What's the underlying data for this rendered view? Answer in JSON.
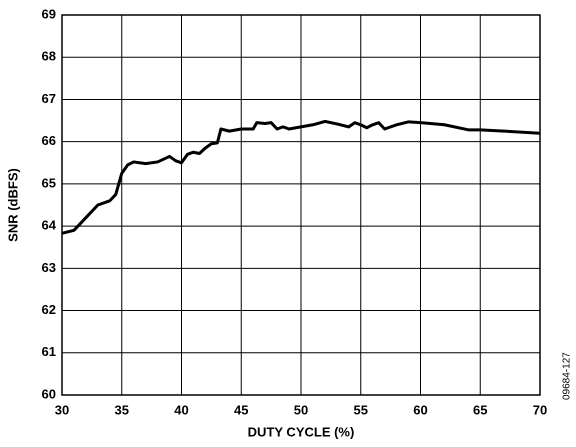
{
  "chart_data": {
    "type": "line",
    "xlabel": "DUTY CYCLE (%)",
    "ylabel": "SNR (dBFS)",
    "annotation": "09684-127",
    "x": [
      30,
      31,
      32,
      33,
      34,
      34.5,
      35,
      35.5,
      36,
      37,
      38,
      39,
      39.5,
      40,
      40.5,
      41,
      41.5,
      42,
      42.5,
      43,
      43.3,
      44,
      45,
      46,
      46.3,
      47,
      47.5,
      48,
      48.5,
      49,
      50,
      51,
      52,
      53,
      54,
      54.5,
      55,
      55.5,
      56,
      56.5,
      57,
      58,
      59,
      60,
      62,
      64,
      65,
      67,
      70
    ],
    "values": [
      63.83,
      63.9,
      64.2,
      64.5,
      64.6,
      64.75,
      65.25,
      65.45,
      65.52,
      65.48,
      65.52,
      65.65,
      65.55,
      65.5,
      65.7,
      65.75,
      65.72,
      65.85,
      65.95,
      65.97,
      66.3,
      66.25,
      66.3,
      66.3,
      66.45,
      66.43,
      66.45,
      66.3,
      66.35,
      66.3,
      66.35,
      66.4,
      66.48,
      66.42,
      66.35,
      66.45,
      66.4,
      66.33,
      66.4,
      66.45,
      66.3,
      66.4,
      66.47,
      66.45,
      66.4,
      66.28,
      66.28,
      66.25,
      66.2
    ],
    "color": "#000000",
    "xlim": [
      30,
      70
    ],
    "xticks": [
      30,
      35,
      40,
      45,
      50,
      55,
      60,
      65,
      70
    ],
    "ylim": [
      60,
      69
    ],
    "yticks": [
      60,
      61,
      62,
      63,
      64,
      65,
      66,
      67,
      68,
      69
    ],
    "grid": true
  }
}
